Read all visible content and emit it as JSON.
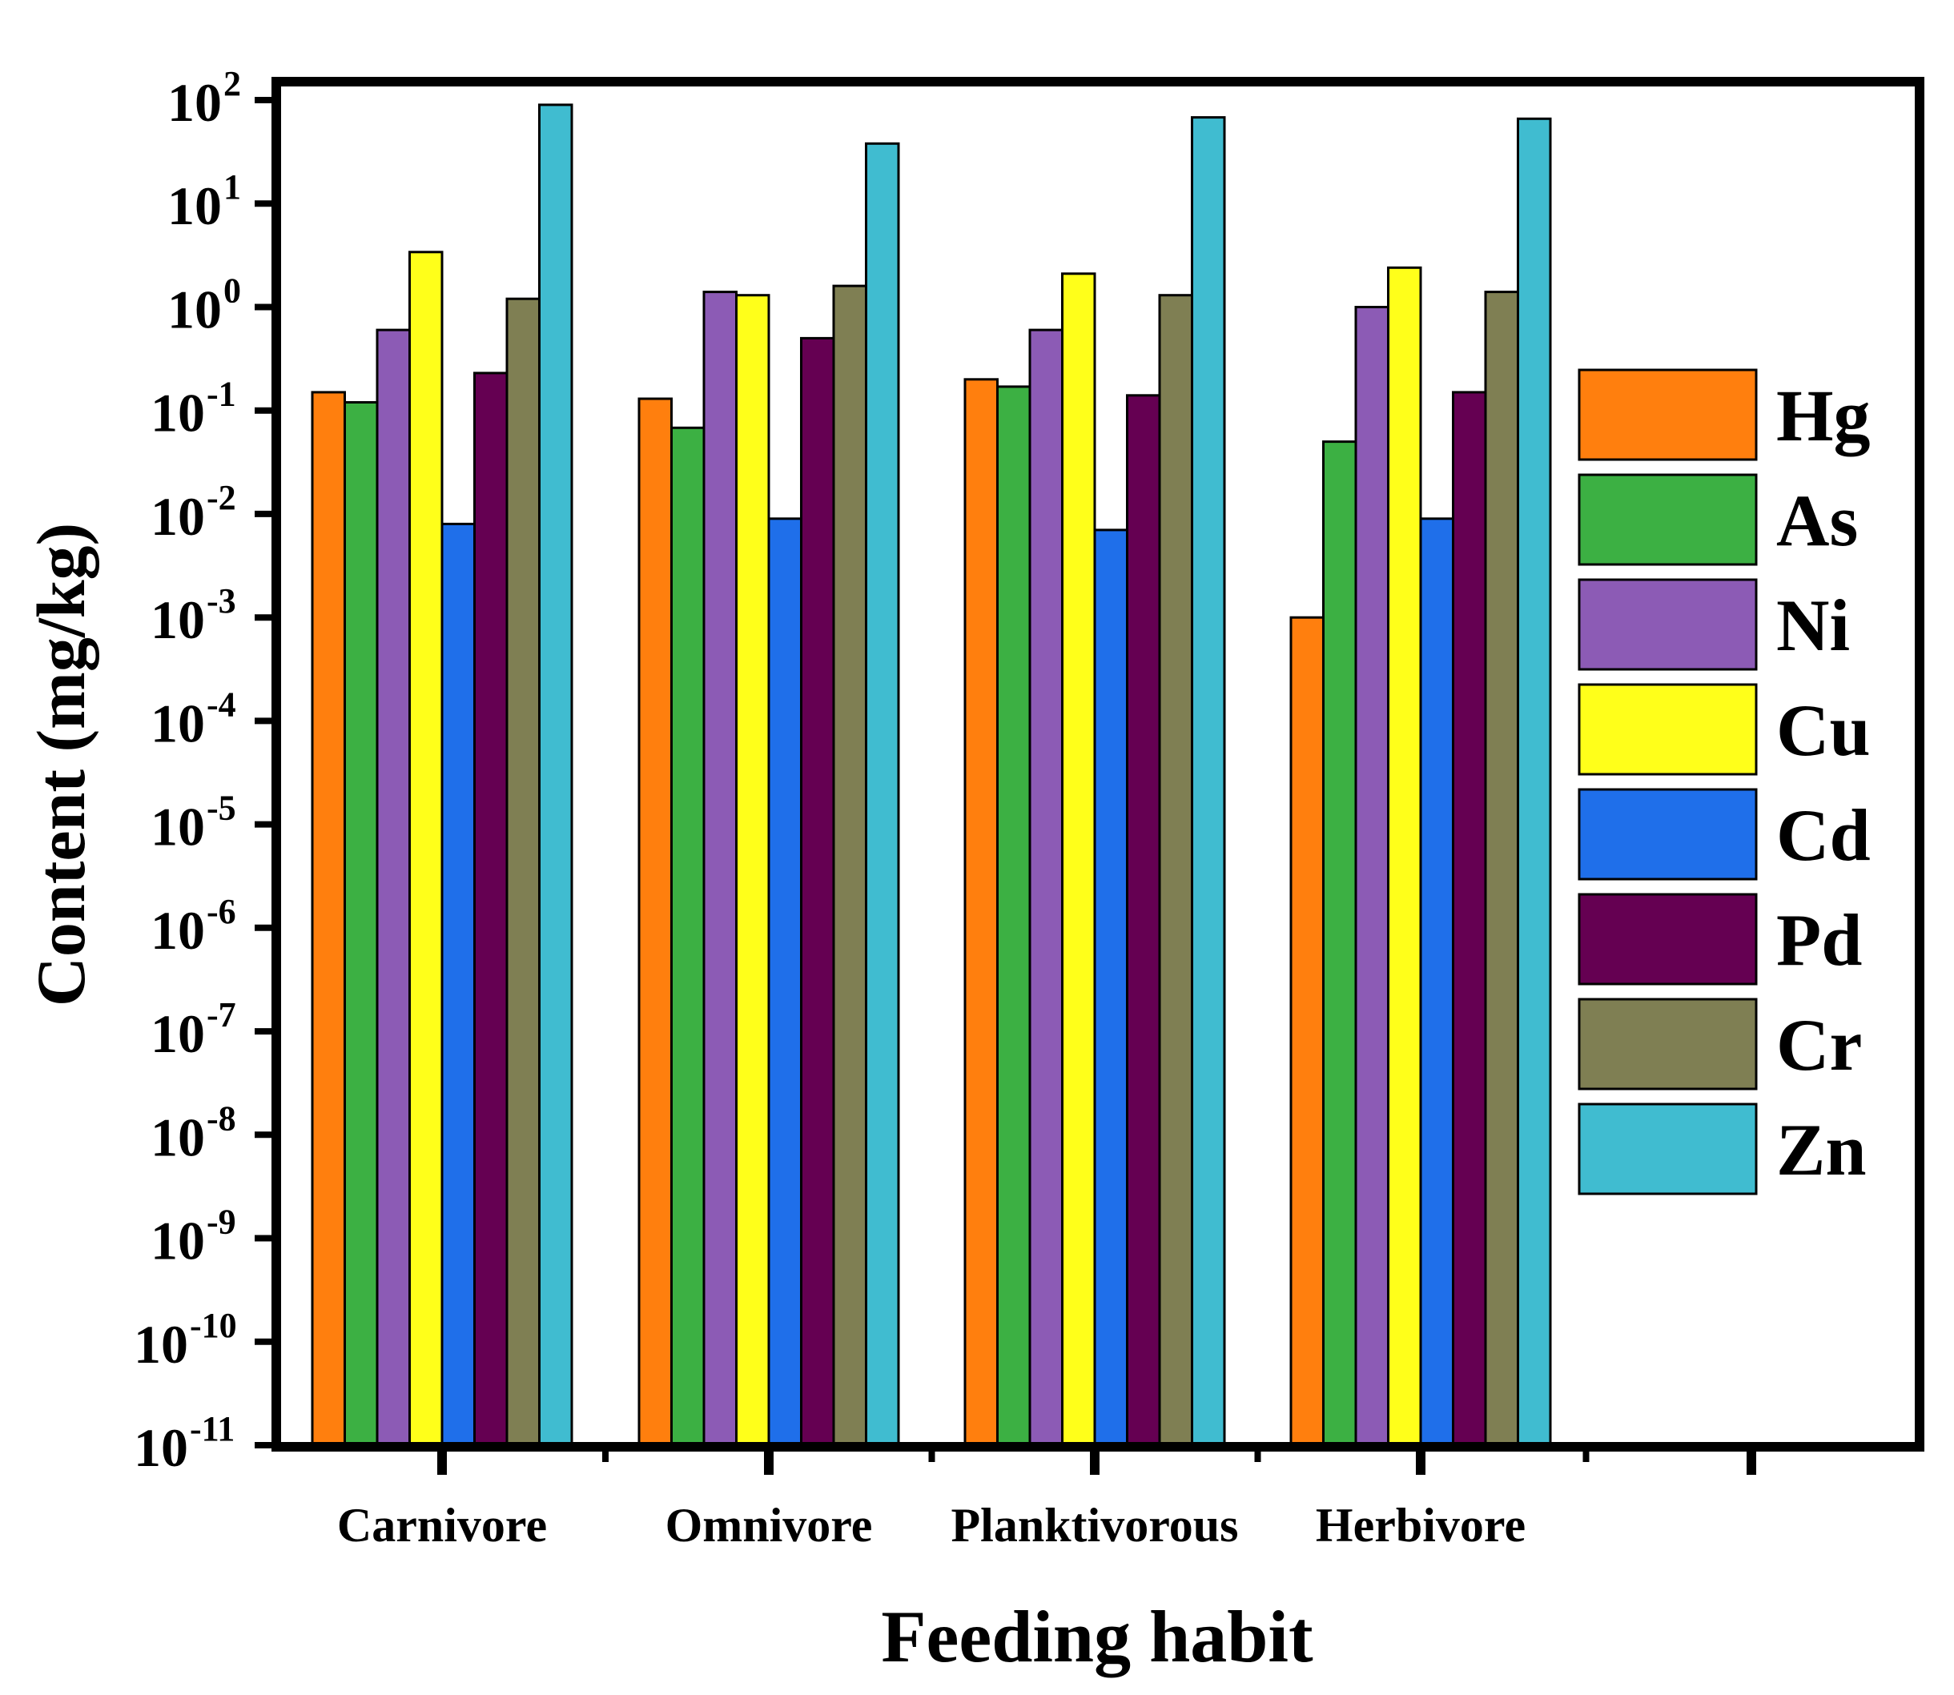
{
  "chart_data": {
    "type": "bar",
    "title": "",
    "xlabel": "Feeding habit",
    "ylabel": "Content (mg/kg)",
    "yscale": "log",
    "ylim": [
      1e-11,
      100
    ],
    "categories": [
      "Carnivore",
      "Omnivore",
      "Planktivorous",
      "Herbivore"
    ],
    "yticks": [
      {
        "base": "10",
        "exp": "2"
      },
      {
        "base": "10",
        "exp": "1"
      },
      {
        "base": "10",
        "exp": "0"
      },
      {
        "base": "10",
        "exp": "-1"
      },
      {
        "base": "10",
        "exp": "-2"
      },
      {
        "base": "10",
        "exp": "-3"
      },
      {
        "base": "10",
        "exp": "-4"
      },
      {
        "base": "10",
        "exp": "-5"
      },
      {
        "base": "10",
        "exp": "-6"
      },
      {
        "base": "10",
        "exp": "-7"
      },
      {
        "base": "10",
        "exp": "-8"
      },
      {
        "base": "10",
        "exp": "-9"
      },
      {
        "base": "10",
        "exp": "-10"
      },
      {
        "base": "10",
        "exp": "-11"
      }
    ],
    "legend_position": "right",
    "series": [
      {
        "name": "Hg",
        "color": "#FF7F0E",
        "values": [
          0.15,
          0.13,
          0.2,
          0.001
        ]
      },
      {
        "name": "As",
        "color": "#3CB043",
        "values": [
          0.12,
          0.068,
          0.17,
          0.05
        ]
      },
      {
        "name": "Ni",
        "color": "#8C5BB5",
        "values": [
          0.6,
          1.4,
          0.6,
          1.0
        ]
      },
      {
        "name": "Cu",
        "color": "#FFFF1A",
        "values": [
          3.4,
          1.3,
          2.1,
          2.4
        ]
      },
      {
        "name": "Cd",
        "color": "#1F6FEA",
        "values": [
          0.008,
          0.009,
          0.007,
          0.009
        ]
      },
      {
        "name": "Pd",
        "color": "#650052",
        "values": [
          0.23,
          0.5,
          0.14,
          0.15
        ]
      },
      {
        "name": "Cr",
        "color": "#7F7F53",
        "values": [
          1.2,
          1.6,
          1.3,
          1.4
        ]
      },
      {
        "name": "Zn",
        "color": "#40BCD0",
        "values": [
          90,
          38,
          68,
          66
        ]
      }
    ]
  }
}
